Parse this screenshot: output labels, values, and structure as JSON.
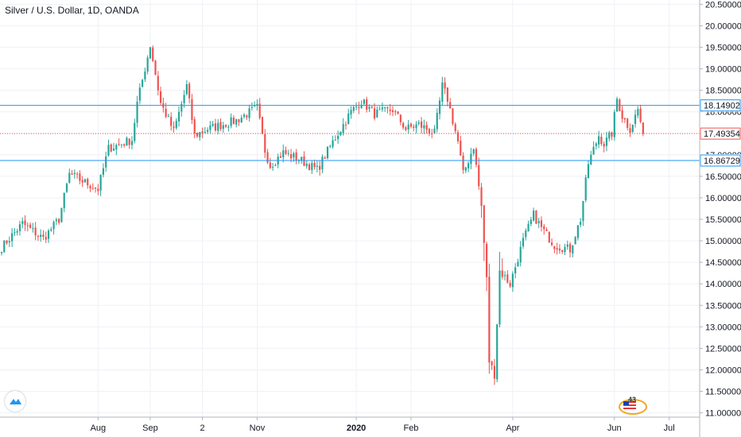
{
  "header": {
    "title": "Silver / U.S. Dollar, 1D, OANDA"
  },
  "badge": {
    "count": "43"
  },
  "colors": {
    "up": "#26a69a",
    "down": "#ef5350",
    "level_line": "#2196f3",
    "last_price": "#ef5350",
    "grid": "#eef1f6",
    "axis_text": "#131722"
  },
  "chart_data": {
    "type": "candlestick",
    "title": "Silver / U.S. Dollar, 1D, OANDA",
    "xlabel": "",
    "ylabel": "",
    "ylim": [
      10.9,
      20.6
    ],
    "y_ticks": [
      11.0,
      11.5,
      12.0,
      12.5,
      13.0,
      13.5,
      14.0,
      14.5,
      15.0,
      15.5,
      16.0,
      16.5,
      17.0,
      17.5,
      18.0,
      18.5,
      19.0,
      19.5,
      20.0,
      20.5
    ],
    "y_tick_labels": [
      "11.00000",
      "11.50000",
      "12.00000",
      "12.50000",
      "13.00000",
      "13.50000",
      "14.00000",
      "14.50000",
      "15.00000",
      "15.50000",
      "16.00000",
      "16.50000",
      "17.00000",
      "17.50000",
      "18.00000",
      "18.50000",
      "19.00000",
      "19.50000",
      "20.00000",
      "20.50000"
    ],
    "x_ticks": [
      {
        "label": "Aug",
        "bar": 37,
        "bold": false
      },
      {
        "label": "Sep",
        "bar": 57,
        "bold": false
      },
      {
        "label": "2",
        "bar": 77,
        "bold": false
      },
      {
        "label": "Nov",
        "bar": 98,
        "bold": false
      },
      {
        "label": "2020",
        "bar": 136,
        "bold": true
      },
      {
        "label": "Feb",
        "bar": 157,
        "bold": false
      },
      {
        "label": "Apr",
        "bar": 196,
        "bold": false
      },
      {
        "label": "Jun",
        "bar": 235,
        "bold": false
      },
      {
        "label": "Jul",
        "bar": 256,
        "bold": false
      }
    ],
    "horizontal_levels": [
      {
        "value": 18.14902,
        "label": "18.14902",
        "style": "solid"
      },
      {
        "value": 16.86729,
        "label": "16.86729",
        "style": "solid"
      },
      {
        "value": 17.49354,
        "label": "17.49354",
        "style": "dotted",
        "last_price": true
      }
    ],
    "candle_count": 247,
    "close_waypoints": [
      [
        0,
        14.85
      ],
      [
        8,
        15.4
      ],
      [
        16,
        15.05
      ],
      [
        22,
        15.5
      ],
      [
        26,
        16.55
      ],
      [
        37,
        16.2
      ],
      [
        41,
        17.15
      ],
      [
        50,
        17.35
      ],
      [
        52,
        18.2
      ],
      [
        57,
        19.55
      ],
      [
        61,
        18.2
      ],
      [
        66,
        17.55
      ],
      [
        71,
        18.6
      ],
      [
        74,
        17.45
      ],
      [
        79,
        17.6
      ],
      [
        90,
        17.8
      ],
      [
        98,
        18.1
      ],
      [
        101,
        17.1
      ],
      [
        103,
        16.75
      ],
      [
        108,
        17.05
      ],
      [
        114,
        16.9
      ],
      [
        121,
        16.65
      ],
      [
        127,
        17.3
      ],
      [
        131,
        17.7
      ],
      [
        134,
        18.0
      ],
      [
        138,
        18.25
      ],
      [
        143,
        17.95
      ],
      [
        150,
        18.05
      ],
      [
        155,
        17.6
      ],
      [
        160,
        17.7
      ],
      [
        166,
        17.5
      ],
      [
        169,
        18.6
      ],
      [
        171,
        18.3
      ],
      [
        175,
        17.3
      ],
      [
        177,
        16.55
      ],
      [
        181,
        17.2
      ],
      [
        184,
        15.8
      ],
      [
        186,
        14.1
      ],
      [
        187,
        12.2
      ],
      [
        189,
        11.9
      ],
      [
        191,
        14.3
      ],
      [
        195,
        14.0
      ],
      [
        200,
        15.0
      ],
      [
        204,
        15.6
      ],
      [
        207,
        15.3
      ],
      [
        212,
        14.9
      ],
      [
        218,
        14.8
      ],
      [
        222,
        15.5
      ],
      [
        225,
        16.8
      ],
      [
        229,
        17.45
      ],
      [
        231,
        17.25
      ],
      [
        234,
        17.5
      ],
      [
        236,
        18.3
      ],
      [
        238,
        17.9
      ],
      [
        241,
        17.6
      ],
      [
        244,
        18.05
      ],
      [
        246,
        17.49354
      ]
    ]
  }
}
